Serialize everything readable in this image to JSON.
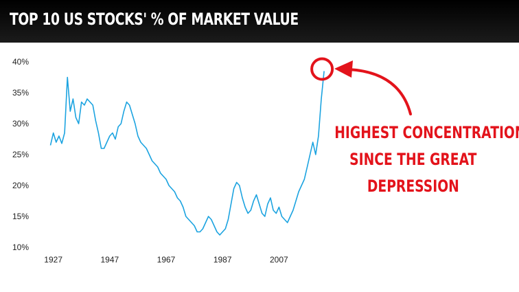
{
  "header": {
    "title": "TOP 10 US STOCKS' % OF MARKET VALUE"
  },
  "annotation": {
    "lines": [
      "HIGHEST CONCENTRATION",
      "SINCE THE GREAT",
      "DEPRESSION"
    ],
    "color": "#e3131b"
  },
  "colors": {
    "line": "#1ba3e0",
    "header_bg": "#000000",
    "annotation": "#e3131b"
  },
  "chart_data": {
    "type": "line",
    "title": "TOP 10 US STOCKS' % OF MARKET VALUE",
    "xlabel": "",
    "ylabel": "",
    "x_ticks": [
      "1927",
      "1947",
      "1967",
      "1987",
      "2007"
    ],
    "y_ticks": [
      "10%",
      "15%",
      "20%",
      "25%",
      "30%",
      "35%",
      "40%"
    ],
    "xlim": [
      1921,
      2022
    ],
    "ylim": [
      10,
      40
    ],
    "grid": false,
    "legend": "none",
    "highlight": {
      "x": 2023,
      "y": 38.5
    },
    "series": [
      {
        "x": [
          1926,
          1927,
          1928,
          1929,
          1930,
          1931,
          1932,
          1933,
          1934,
          1935,
          1936,
          1937,
          1938,
          1939,
          1940,
          1941,
          1942,
          1943,
          1944,
          1945,
          1946,
          1947,
          1948,
          1949,
          1950,
          1951,
          1952,
          1953,
          1954,
          1955,
          1956,
          1957,
          1958,
          1959,
          1960,
          1961,
          1962,
          1963,
          1964,
          1965,
          1966,
          1967,
          1968,
          1969,
          1970,
          1971,
          1972,
          1973,
          1974,
          1975,
          1976,
          1977,
          1978,
          1979,
          1980,
          1981,
          1982,
          1983,
          1984,
          1985,
          1986,
          1987,
          1988,
          1989,
          1990,
          1991,
          1992,
          1993,
          1994,
          1995,
          1996,
          1997,
          1998,
          1999,
          2000,
          2001,
          2002,
          2003,
          2004,
          2005,
          2006,
          2007,
          2008,
          2009,
          2010,
          2011,
          2012,
          2013,
          2014,
          2015,
          2016,
          2017,
          2018,
          2019,
          2020,
          2021,
          2022,
          2023
        ],
        "y": [
          26.5,
          28.5,
          27.0,
          28.0,
          26.8,
          28.5,
          37.5,
          32.0,
          34.0,
          31.0,
          30.0,
          33.5,
          33.0,
          34.0,
          33.5,
          33.0,
          30.5,
          28.5,
          26.0,
          26.0,
          27.0,
          28.0,
          28.5,
          27.5,
          29.5,
          30.0,
          32.0,
          33.5,
          33.0,
          31.5,
          30.0,
          28.0,
          27.0,
          26.5,
          26.0,
          25.0,
          24.0,
          23.5,
          23.0,
          22.0,
          21.5,
          21.0,
          20.0,
          19.5,
          19.0,
          18.0,
          17.5,
          16.5,
          15.0,
          14.5,
          14.0,
          13.5,
          12.5,
          12.5,
          13.0,
          14.0,
          15.0,
          14.5,
          13.5,
          12.5,
          12.0,
          12.5,
          13.0,
          14.5,
          17.0,
          19.5,
          20.5,
          20.0,
          18.0,
          16.5,
          15.5,
          16.0,
          17.5,
          18.5,
          17.0,
          15.5,
          15.0,
          17.0,
          18.0,
          16.0,
          15.5,
          16.5,
          15.0,
          14.5,
          14.0,
          15.0,
          16.0,
          17.5,
          19.0,
          20.0,
          21.0,
          23.0,
          25.0,
          27.0,
          25.0,
          28.0,
          34.0,
          38.5
        ]
      }
    ]
  }
}
